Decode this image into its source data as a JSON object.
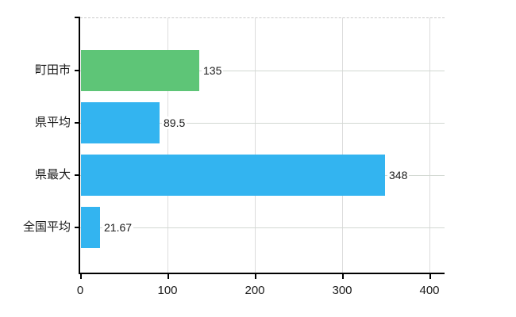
{
  "chart_data": {
    "type": "bar",
    "orientation": "horizontal",
    "title": "",
    "xlabel": "",
    "ylabel": "",
    "categories": [
      "町田市",
      "県平均",
      "県最大",
      "全国平均"
    ],
    "values": [
      135,
      89.5,
      348,
      21.67
    ],
    "value_labels": [
      "135",
      "89.5",
      "348",
      "21.67"
    ],
    "bar_colors": [
      "#5ec577",
      "#33b4f0",
      "#33b4f0",
      "#33b4f0"
    ],
    "x_ticks": [
      0,
      100,
      200,
      300,
      400
    ],
    "x_tick_labels": [
      "0",
      "100",
      "200",
      "300",
      "400"
    ],
    "xlim": [
      0,
      417
    ],
    "grid": true,
    "legend": false
  },
  "colors": {
    "highlight_bar": "#5ec577",
    "default_bar": "#33b4f0",
    "axis": "#000000",
    "vertical_gridline": "#dcdcdc",
    "horizontal_gridline": "#d2d8d2",
    "plot_top_border": "#c9c9c9",
    "background": "#ffffff",
    "label_text": "#1a1a1a"
  }
}
